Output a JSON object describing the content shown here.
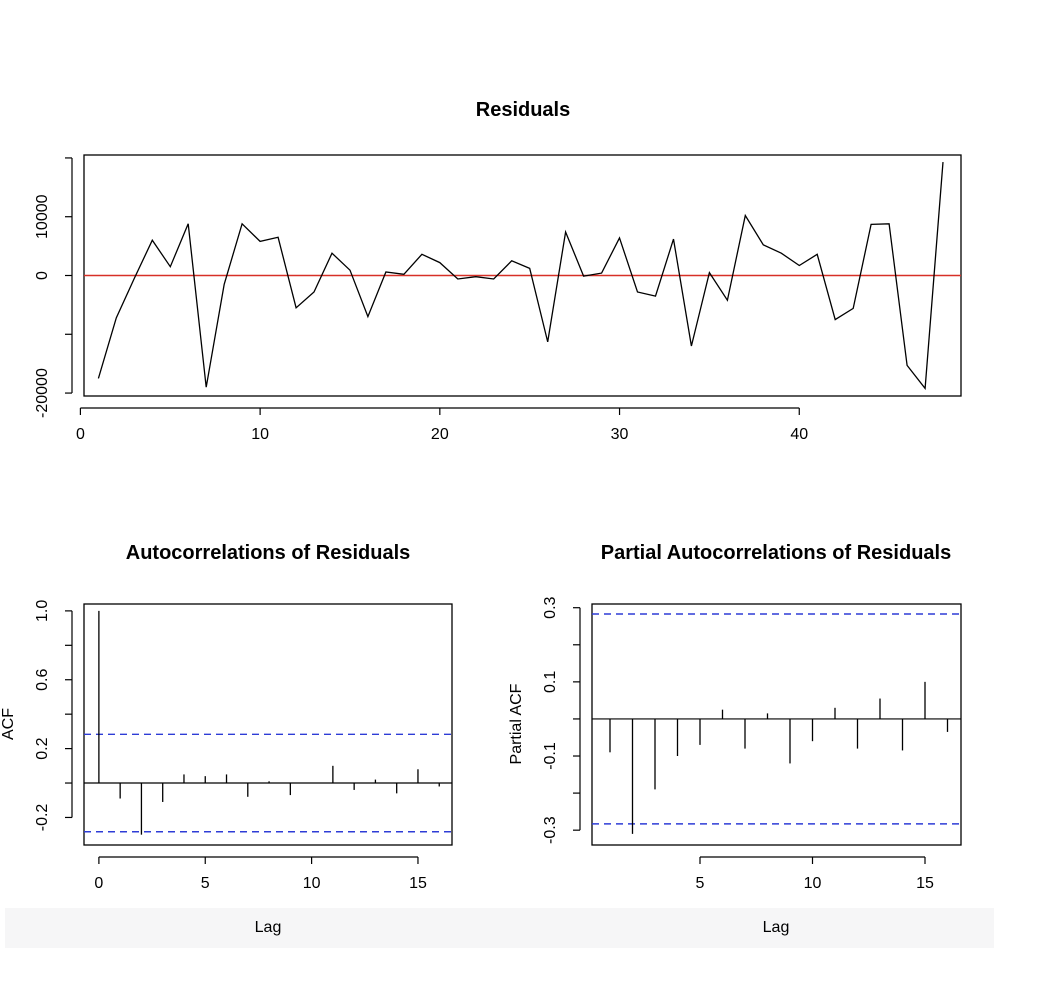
{
  "chart_data": [
    {
      "type": "line",
      "title": "Residuals",
      "xlabel": "",
      "ylabel": "",
      "xlim": [
        0.2,
        49
      ],
      "ylim": [
        -20500,
        20500
      ],
      "xticks": [
        0,
        10,
        20,
        30,
        40
      ],
      "xtick_labels": [
        "0",
        "10",
        "20",
        "30",
        "40"
      ],
      "yticks": [
        -20000,
        -10000,
        0,
        10000,
        20000
      ],
      "ytick_labels": [
        "-20000",
        "",
        "0",
        "10000",
        ""
      ],
      "reference_line": {
        "y": 0,
        "color": "#d73027"
      },
      "series": [
        {
          "color": "#000000",
          "x": [
            1,
            2,
            3,
            4,
            5,
            6,
            7,
            8,
            9,
            10,
            11,
            12,
            13,
            14,
            15,
            16,
            17,
            18,
            19,
            20,
            21,
            22,
            23,
            24,
            25,
            26,
            27,
            28,
            29,
            30,
            31,
            32,
            33,
            34,
            35,
            36,
            37,
            38,
            39,
            40,
            41,
            42,
            43,
            44,
            45,
            46,
            47,
            48
          ],
          "values": [
            -17500,
            -7200,
            -500,
            6000,
            1500,
            8800,
            -19000,
            -1500,
            8800,
            5800,
            6500,
            -5500,
            -2800,
            3800,
            900,
            -7000,
            600,
            200,
            3600,
            2200,
            -600,
            -200,
            -600,
            2500,
            1200,
            -11300,
            7400,
            -100,
            400,
            6400,
            -2800,
            -3500,
            6200,
            -12000,
            500,
            -4200,
            10200,
            5200,
            3800,
            1700,
            3600,
            -7500,
            -5600,
            8700,
            8800,
            -15300,
            -19200,
            19300
          ]
        }
      ]
    },
    {
      "type": "bar",
      "title": "Autocorrelations of Residuals",
      "xlabel": "Lag",
      "ylabel": "ACF",
      "xlim": [
        -0.7,
        16.6
      ],
      "ylim": [
        -0.36,
        1.04
      ],
      "xticks": [
        0,
        5,
        10,
        15
      ],
      "xtick_labels": [
        "0",
        "5",
        "10",
        "15"
      ],
      "yticks": [
        -0.2,
        0.2,
        0.6,
        1.0
      ],
      "ytick_labels": [
        "-0.2",
        "0.2",
        "0.6",
        "1.0"
      ],
      "yminor_ticks": [
        0.0,
        0.4,
        0.8
      ],
      "confidence_bounds": [
        0.283,
        -0.283
      ],
      "confidence_color": "#2e3cd6",
      "x": [
        0,
        1,
        2,
        3,
        4,
        5,
        6,
        7,
        8,
        9,
        10,
        11,
        12,
        13,
        14,
        15,
        16
      ],
      "values": [
        1.0,
        -0.09,
        -0.3,
        -0.11,
        0.05,
        0.04,
        0.05,
        -0.08,
        0.01,
        -0.07,
        0.0,
        0.1,
        -0.04,
        0.02,
        -0.06,
        0.08,
        -0.02
      ]
    },
    {
      "type": "bar",
      "title": "Partial Autocorrelations of Residuals",
      "xlabel": "Lag",
      "ylabel": "Partial ACF",
      "xlim": [
        0.2,
        16.6
      ],
      "ylim": [
        -0.34,
        0.31
      ],
      "xticks": [
        5,
        10,
        15
      ],
      "xtick_labels": [
        "5",
        "10",
        "15"
      ],
      "yticks": [
        -0.3,
        -0.1,
        0.1,
        0.3
      ],
      "ytick_labels": [
        "-0.3",
        "-0.1",
        "0.1",
        "0.3"
      ],
      "yminor_ticks": [
        -0.2,
        0.0,
        0.2
      ],
      "confidence_bounds": [
        0.283,
        -0.283
      ],
      "confidence_color": "#2e3cd6",
      "x": [
        1,
        2,
        3,
        4,
        5,
        6,
        7,
        8,
        9,
        10,
        11,
        12,
        13,
        14,
        15,
        16
      ],
      "values": [
        -0.09,
        -0.31,
        -0.19,
        -0.1,
        -0.07,
        0.025,
        -0.08,
        0.015,
        -0.12,
        -0.06,
        0.03,
        -0.08,
        0.055,
        -0.085,
        0.1,
        -0.035
      ]
    }
  ]
}
